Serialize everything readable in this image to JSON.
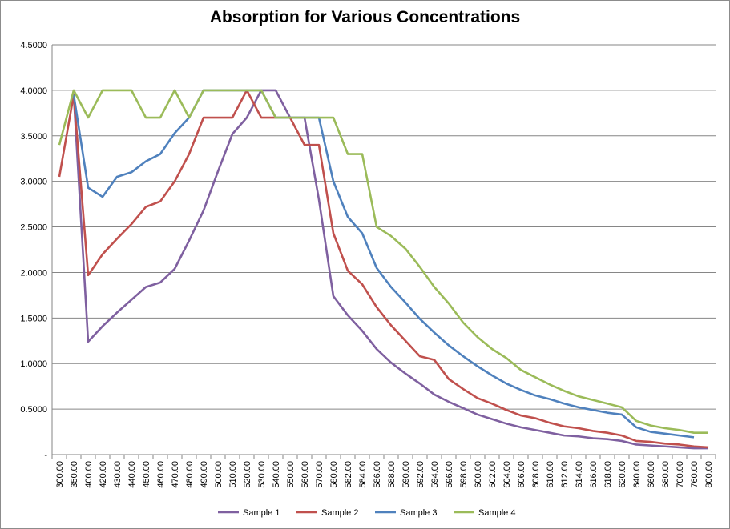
{
  "chart_data": {
    "type": "line",
    "title": "Absorption for Various Concentrations",
    "xlabel": "",
    "ylabel": "",
    "ylim": [
      0,
      4.5
    ],
    "y_ticks": [
      "-",
      "0.5000",
      "1.0000",
      "1.5000",
      "2.0000",
      "2.5000",
      "3.0000",
      "3.5000",
      "4.0000",
      "4.5000"
    ],
    "categories": [
      "300.00",
      "350.00",
      "400.00",
      "420.00",
      "430.00",
      "440.00",
      "450.00",
      "460.00",
      "470.00",
      "480.00",
      "490.00",
      "500.00",
      "510.00",
      "520.00",
      "530.00",
      "540.00",
      "550.00",
      "560.00",
      "570.00",
      "580.00",
      "582.00",
      "584.00",
      "586.00",
      "588.00",
      "590.00",
      "592.00",
      "594.00",
      "596.00",
      "598.00",
      "600.00",
      "602.00",
      "604.00",
      "606.00",
      "608.00",
      "610.00",
      "612.00",
      "614.00",
      "616.00",
      "618.00",
      "620.00",
      "640.00",
      "660.00",
      "680.00",
      "700.00",
      "760.00",
      "800.00"
    ],
    "grid": "horizontal",
    "legend_position": "bottom",
    "series": [
      {
        "name": "Sample 1",
        "color": "#7f60a0",
        "values": [
          null,
          3.95,
          1.24,
          1.41,
          1.56,
          1.7,
          1.84,
          1.89,
          2.04,
          2.35,
          2.68,
          3.11,
          3.52,
          3.7,
          4.0,
          4.0,
          3.7,
          3.7,
          2.8,
          1.74,
          1.53,
          1.36,
          1.16,
          1.01,
          0.89,
          0.78,
          0.66,
          0.58,
          0.51,
          0.44,
          0.39,
          0.34,
          0.3,
          0.27,
          0.24,
          0.21,
          0.2,
          0.18,
          0.17,
          0.15,
          0.11,
          0.1,
          0.09,
          0.08,
          0.07,
          0.07
        ]
      },
      {
        "name": "Sample 2",
        "color": "#c0504d",
        "values": [
          3.05,
          3.95,
          1.97,
          2.2,
          2.37,
          2.53,
          2.72,
          2.78,
          3.0,
          3.3,
          3.7,
          3.7,
          3.7,
          4.0,
          3.7,
          3.7,
          3.7,
          3.4,
          3.4,
          2.43,
          2.02,
          1.87,
          1.62,
          1.42,
          1.25,
          1.08,
          1.04,
          0.83,
          0.72,
          0.62,
          0.56,
          0.49,
          0.43,
          0.4,
          0.35,
          0.31,
          0.29,
          0.26,
          0.24,
          0.21,
          0.15,
          0.14,
          0.12,
          0.11,
          0.09,
          0.08
        ]
      },
      {
        "name": "Sample 3",
        "color": "#4f81bd",
        "values": [
          null,
          3.95,
          2.93,
          2.83,
          3.05,
          3.1,
          3.22,
          3.3,
          3.53,
          3.7,
          4.0,
          4.0,
          4.0,
          4.0,
          4.0,
          3.7,
          3.7,
          3.7,
          3.7,
          3.0,
          2.61,
          2.43,
          2.05,
          1.84,
          1.67,
          1.49,
          1.34,
          1.2,
          1.08,
          0.97,
          0.87,
          0.78,
          0.71,
          0.65,
          0.61,
          0.56,
          0.52,
          0.49,
          0.46,
          0.44,
          0.3,
          0.25,
          0.23,
          0.21,
          0.19,
          null
        ]
      },
      {
        "name": "Sample 4",
        "color": "#9bbb59",
        "values": [
          3.4,
          4.0,
          3.7,
          4.0,
          4.0,
          4.0,
          3.7,
          3.7,
          4.0,
          3.7,
          4.0,
          4.0,
          4.0,
          4.0,
          4.0,
          3.7,
          3.7,
          3.7,
          3.7,
          3.7,
          3.3,
          3.3,
          2.5,
          2.4,
          2.26,
          2.06,
          1.84,
          1.66,
          1.45,
          1.29,
          1.16,
          1.06,
          0.93,
          0.85,
          0.77,
          0.7,
          0.64,
          0.6,
          0.56,
          0.52,
          0.37,
          0.32,
          0.29,
          0.27,
          0.24,
          0.24
        ]
      }
    ]
  }
}
